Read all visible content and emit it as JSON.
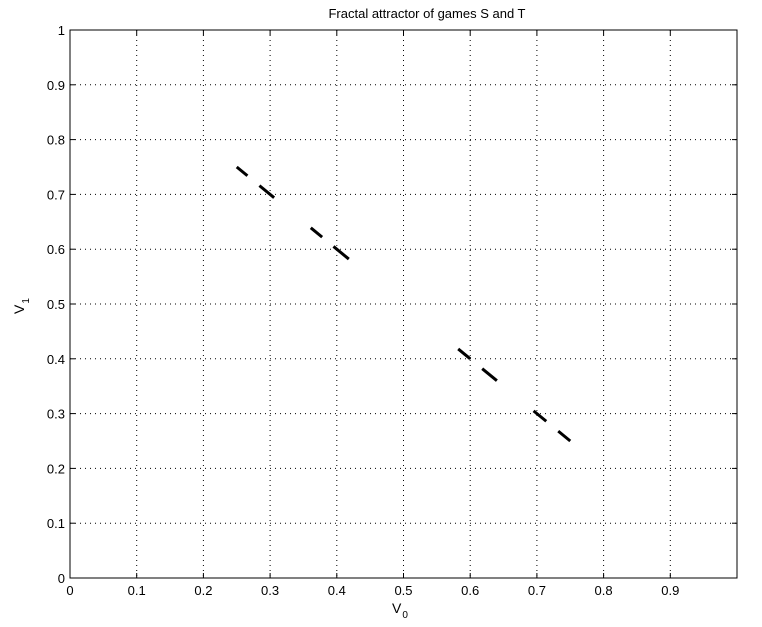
{
  "chart_data": {
    "type": "scatter",
    "title": "Fractal attractor of games S and T",
    "xlabel": "V",
    "xlabel_sub": "0",
    "ylabel": "V",
    "ylabel_sub": "1",
    "xlim": [
      0,
      1
    ],
    "ylim": [
      0,
      1
    ],
    "xticks": [
      0,
      0.1,
      0.2,
      0.3,
      0.4,
      0.5,
      0.6,
      0.7,
      0.8,
      0.9
    ],
    "xtick_labels": [
      "0",
      "0.1",
      "0.2",
      "0.3",
      "0.4",
      "0.5",
      "0.6",
      "0.7",
      "0.8",
      "0.9"
    ],
    "yticks": [
      0,
      0.1,
      0.2,
      0.3,
      0.4,
      0.5,
      0.6,
      0.7,
      0.8,
      0.9,
      1
    ],
    "ytick_labels": [
      "0",
      "0.1",
      "0.2",
      "0.3",
      "0.4",
      "0.5",
      "0.6",
      "0.7",
      "0.8",
      "0.9",
      "1"
    ],
    "grid": true,
    "marker_color": "#000000",
    "segments": [
      {
        "x": [
          0.25,
          0.266
        ],
        "y": [
          0.75,
          0.734
        ]
      },
      {
        "x": [
          0.284,
          0.306
        ],
        "y": [
          0.716,
          0.694
        ]
      },
      {
        "x": [
          0.361,
          0.378
        ],
        "y": [
          0.639,
          0.622
        ]
      },
      {
        "x": [
          0.395,
          0.418
        ],
        "y": [
          0.605,
          0.582
        ]
      },
      {
        "x": [
          0.582,
          0.6
        ],
        "y": [
          0.418,
          0.4
        ]
      },
      {
        "x": [
          0.618,
          0.64
        ],
        "y": [
          0.382,
          0.36
        ]
      },
      {
        "x": [
          0.695,
          0.714
        ],
        "y": [
          0.305,
          0.286
        ]
      },
      {
        "x": [
          0.732,
          0.75
        ],
        "y": [
          0.268,
          0.25
        ]
      }
    ]
  }
}
